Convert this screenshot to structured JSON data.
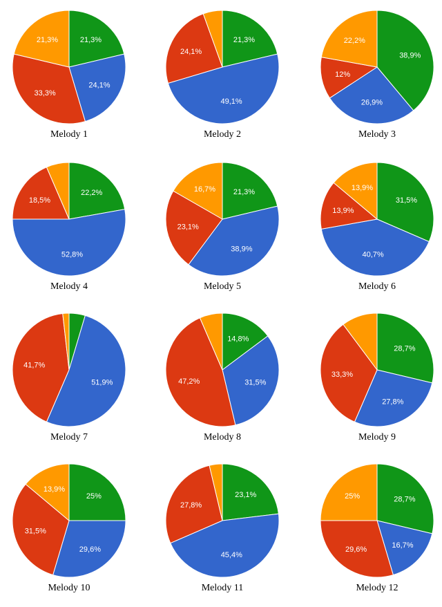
{
  "colors": {
    "green": "#109618",
    "blue": "#3366cc",
    "red": "#dc3912",
    "orange": "#ff9900"
  },
  "chart_data": [
    {
      "type": "pie",
      "title": "Melody 1",
      "slices": [
        {
          "label": "",
          "value": 21.3,
          "display": "21,3%",
          "color": "green"
        },
        {
          "label": "",
          "value": 24.1,
          "display": "24,1%",
          "color": "blue"
        },
        {
          "label": "",
          "value": 33.3,
          "display": "33,3%",
          "color": "red"
        },
        {
          "label": "",
          "value": 21.3,
          "display": "21,3%",
          "color": "orange"
        }
      ]
    },
    {
      "type": "pie",
      "title": "Melody 2",
      "slices": [
        {
          "label": "",
          "value": 21.3,
          "display": "21,3%",
          "color": "green"
        },
        {
          "label": "",
          "value": 49.1,
          "display": "49,1%",
          "color": "blue"
        },
        {
          "label": "",
          "value": 24.1,
          "display": "24,1%",
          "color": "red"
        },
        {
          "label": "",
          "value": 5.5,
          "display": "",
          "color": "orange"
        }
      ]
    },
    {
      "type": "pie",
      "title": "Melody 3",
      "slices": [
        {
          "label": "",
          "value": 38.9,
          "display": "38,9%",
          "color": "green"
        },
        {
          "label": "",
          "value": 26.9,
          "display": "26,9%",
          "color": "blue"
        },
        {
          "label": "",
          "value": 12,
          "display": "12%",
          "color": "red"
        },
        {
          "label": "",
          "value": 22.2,
          "display": "22,2%",
          "color": "orange"
        }
      ]
    },
    {
      "type": "pie",
      "title": "Melody 4",
      "slices": [
        {
          "label": "",
          "value": 22.2,
          "display": "22,2%",
          "color": "green"
        },
        {
          "label": "",
          "value": 52.8,
          "display": "52,8%",
          "color": "blue"
        },
        {
          "label": "",
          "value": 18.5,
          "display": "18,5%",
          "color": "red"
        },
        {
          "label": "",
          "value": 6.5,
          "display": "",
          "color": "orange"
        }
      ]
    },
    {
      "type": "pie",
      "title": "Melody 5",
      "slices": [
        {
          "label": "",
          "value": 21.3,
          "display": "21,3%",
          "color": "green"
        },
        {
          "label": "",
          "value": 38.9,
          "display": "38,9%",
          "color": "blue"
        },
        {
          "label": "",
          "value": 23.1,
          "display": "23,1%",
          "color": "red"
        },
        {
          "label": "",
          "value": 16.7,
          "display": "16,7%",
          "color": "orange"
        }
      ]
    },
    {
      "type": "pie",
      "title": "Melody 6",
      "slices": [
        {
          "label": "",
          "value": 31.5,
          "display": "31,5%",
          "color": "green"
        },
        {
          "label": "",
          "value": 40.7,
          "display": "40,7%",
          "color": "blue"
        },
        {
          "label": "",
          "value": 13.9,
          "display": "13,9%",
          "color": "red"
        },
        {
          "label": "",
          "value": 13.9,
          "display": "13,9%",
          "color": "orange"
        }
      ]
    },
    {
      "type": "pie",
      "title": "Melody 7",
      "slices": [
        {
          "label": "",
          "value": 4.6,
          "display": "",
          "color": "green"
        },
        {
          "label": "",
          "value": 51.9,
          "display": "51,9%",
          "color": "blue"
        },
        {
          "label": "",
          "value": 41.7,
          "display": "41,7%",
          "color": "red"
        },
        {
          "label": "",
          "value": 1.8,
          "display": "",
          "color": "orange"
        }
      ]
    },
    {
      "type": "pie",
      "title": "Melody 8",
      "slices": [
        {
          "label": "",
          "value": 14.8,
          "display": "14,8%",
          "color": "green"
        },
        {
          "label": "",
          "value": 31.5,
          "display": "31,5%",
          "color": "blue"
        },
        {
          "label": "",
          "value": 47.2,
          "display": "47,2%",
          "color": "red"
        },
        {
          "label": "",
          "value": 6.5,
          "display": "",
          "color": "orange"
        }
      ]
    },
    {
      "type": "pie",
      "title": "Melody 9",
      "slices": [
        {
          "label": "",
          "value": 28.7,
          "display": "28,7%",
          "color": "green"
        },
        {
          "label": "",
          "value": 27.8,
          "display": "27,8%",
          "color": "blue"
        },
        {
          "label": "",
          "value": 33.3,
          "display": "33,3%",
          "color": "red"
        },
        {
          "label": "",
          "value": 10.2,
          "display": "",
          "color": "orange"
        }
      ]
    },
    {
      "type": "pie",
      "title": "Melody 10",
      "slices": [
        {
          "label": "",
          "value": 25,
          "display": "25%",
          "color": "green"
        },
        {
          "label": "",
          "value": 29.6,
          "display": "29,6%",
          "color": "blue"
        },
        {
          "label": "",
          "value": 31.5,
          "display": "31,5%",
          "color": "red"
        },
        {
          "label": "",
          "value": 13.9,
          "display": "13,9%",
          "color": "orange"
        }
      ]
    },
    {
      "type": "pie",
      "title": "Melody 11",
      "slices": [
        {
          "label": "",
          "value": 23.1,
          "display": "23,1%",
          "color": "green"
        },
        {
          "label": "",
          "value": 45.4,
          "display": "45,4%",
          "color": "blue"
        },
        {
          "label": "",
          "value": 27.8,
          "display": "27,8%",
          "color": "red"
        },
        {
          "label": "",
          "value": 3.7,
          "display": "",
          "color": "orange"
        }
      ]
    },
    {
      "type": "pie",
      "title": "Melody 12",
      "slices": [
        {
          "label": "",
          "value": 28.7,
          "display": "28,7%",
          "color": "green"
        },
        {
          "label": "",
          "value": 16.7,
          "display": "16,7%",
          "color": "blue"
        },
        {
          "label": "",
          "value": 29.6,
          "display": "29,6%",
          "color": "red"
        },
        {
          "label": "",
          "value": 25,
          "display": "25%",
          "color": "orange"
        }
      ]
    }
  ]
}
